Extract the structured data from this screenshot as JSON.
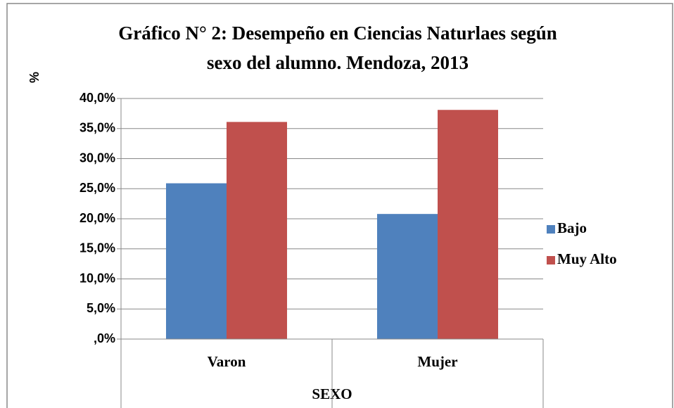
{
  "chart_data": {
    "type": "bar",
    "title": [
      "Gráfico N° 2: Desempeño en Ciencias Naturlaes según",
      "sexo del alumno. Mendoza, 2013"
    ],
    "y_label": "%",
    "x_label": "SEXO",
    "categories": [
      "Varon",
      "Mujer"
    ],
    "series": [
      {
        "name": "Bajo",
        "color": "#4f81bd",
        "values": [
          25.9,
          20.8
        ]
      },
      {
        "name": "Muy Alto",
        "color": "#c0504d",
        "values": [
          36.1,
          38.1
        ]
      }
    ],
    "ylim": [
      0,
      40
    ],
    "yticks": [
      {
        "value": 0,
        "label": ",0%"
      },
      {
        "value": 5,
        "label": "5,0%"
      },
      {
        "value": 10,
        "label": "10,0%"
      },
      {
        "value": 15,
        "label": "15,0%"
      },
      {
        "value": 20,
        "label": "20,0%"
      },
      {
        "value": 25,
        "label": "25,0%"
      },
      {
        "value": 30,
        "label": "30,0%"
      },
      {
        "value": 35,
        "label": "35,0%"
      },
      {
        "value": 40,
        "label": "40,0%"
      }
    ],
    "grid": true,
    "legend": "right"
  }
}
